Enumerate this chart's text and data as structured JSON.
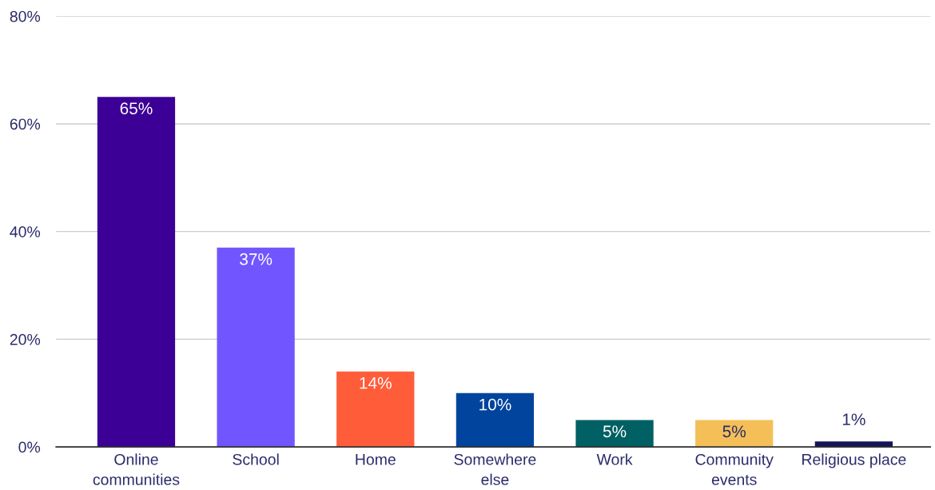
{
  "chart_data": {
    "type": "bar",
    "categories": [
      "Online\ncommunities",
      "School",
      "Home",
      "Somewhere\nelse",
      "Work",
      "Community\nevents",
      "Religious place"
    ],
    "values": [
      65,
      37,
      14,
      10,
      5,
      5,
      1
    ],
    "colors": [
      "#3d0096",
      "#7155ff",
      "#ff5c3a",
      "#00449e",
      "#006064",
      "#f4bf57",
      "#14145a"
    ],
    "value_labels": [
      "65%",
      "37%",
      "14%",
      "10%",
      "5%",
      "5%",
      "1%"
    ],
    "ylim": [
      0,
      80
    ],
    "yticks": [
      {
        "value": 0,
        "label": "0%"
      },
      {
        "value": 20,
        "label": "20%"
      },
      {
        "value": 40,
        "label": "40%"
      },
      {
        "value": 60,
        "label": "60%"
      },
      {
        "value": 80,
        "label": "80%"
      }
    ],
    "grid": "y"
  }
}
